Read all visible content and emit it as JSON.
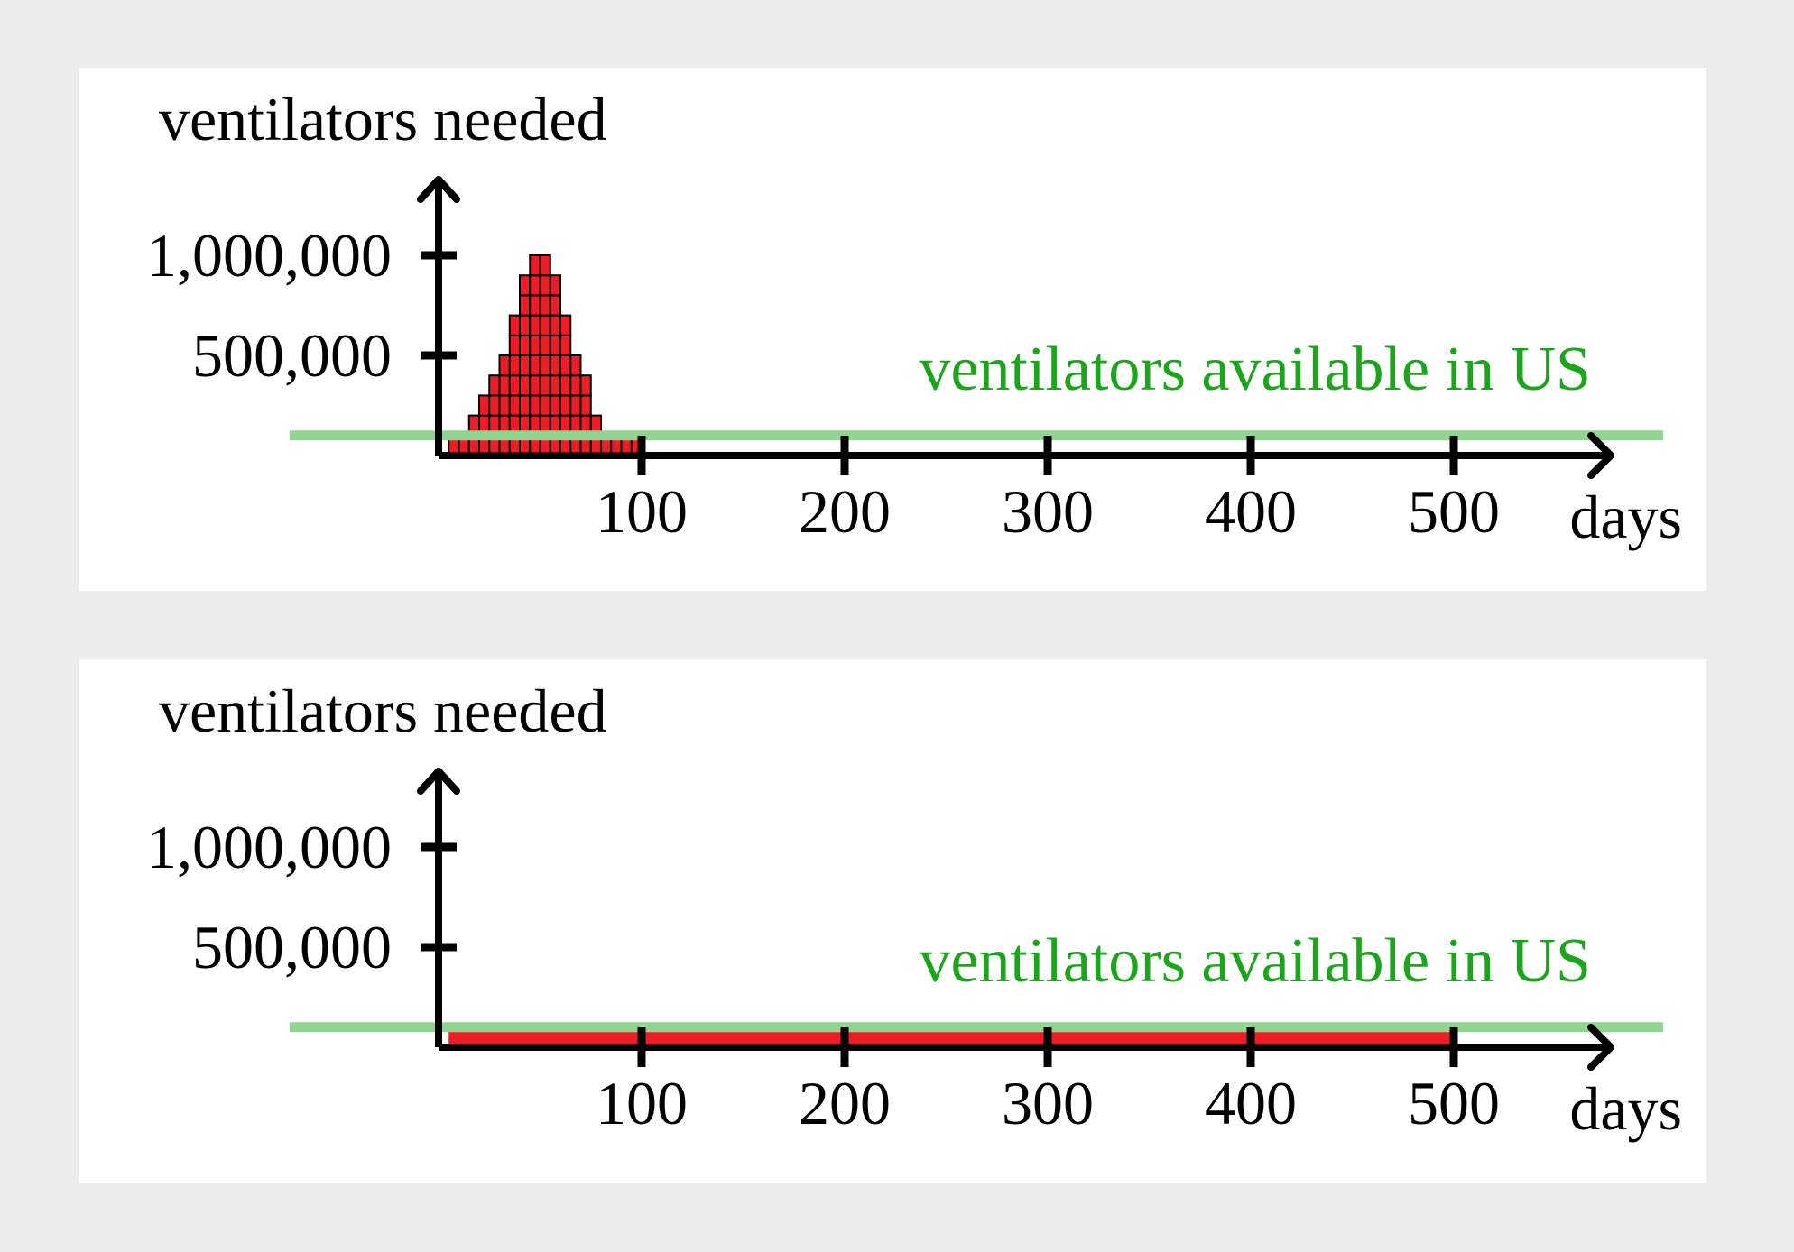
{
  "colors": {
    "background": "#ececec",
    "panel": "#ffffff",
    "axis": "#000000",
    "bar_fill": "#ee1c24",
    "bar_stroke": "#000000",
    "capacity_line": "#8fd58f",
    "capacity_text": "#1aa51a"
  },
  "chart_data": [
    {
      "type": "bar",
      "ylabel": "ventilators needed",
      "xlabel": "days",
      "xlim": [
        0,
        520
      ],
      "ylim": [
        0,
        1000000
      ],
      "xticks": [
        100,
        200,
        300,
        400,
        500
      ],
      "xtick_labels": [
        "100",
        "200",
        "300",
        "400",
        "500"
      ],
      "yticks": [
        500000,
        1000000
      ],
      "ytick_labels": [
        "500,000",
        "1,000,000"
      ],
      "annotations": [
        {
          "text": "ventilators available in US",
          "y": 100000
        }
      ],
      "series": [
        {
          "bin_width_days": 5,
          "x_start": [
            5,
            10,
            15,
            20,
            25,
            30,
            35,
            40,
            45,
            50,
            55,
            60,
            65,
            70,
            75,
            80,
            85,
            90,
            95
          ],
          "values": [
            100000,
            100000,
            200000,
            300000,
            400000,
            500000,
            700000,
            900000,
            1000000,
            1000000,
            900000,
            700000,
            500000,
            400000,
            200000,
            100000,
            100000,
            100000,
            100000
          ]
        }
      ]
    },
    {
      "type": "bar",
      "ylabel": "ventilators needed",
      "xlabel": "days",
      "xlim": [
        0,
        520
      ],
      "ylim": [
        0,
        1000000
      ],
      "xticks": [
        100,
        200,
        300,
        400,
        500
      ],
      "xtick_labels": [
        "100",
        "200",
        "300",
        "400",
        "500"
      ],
      "yticks": [
        500000,
        1000000
      ],
      "ytick_labels": [
        "500,000",
        "1,000,000"
      ],
      "annotations": [
        {
          "text": "ventilators available in US",
          "y": 100000
        }
      ],
      "series": [
        {
          "x_range": [
            5,
            500
          ],
          "value": 60000
        }
      ]
    }
  ]
}
